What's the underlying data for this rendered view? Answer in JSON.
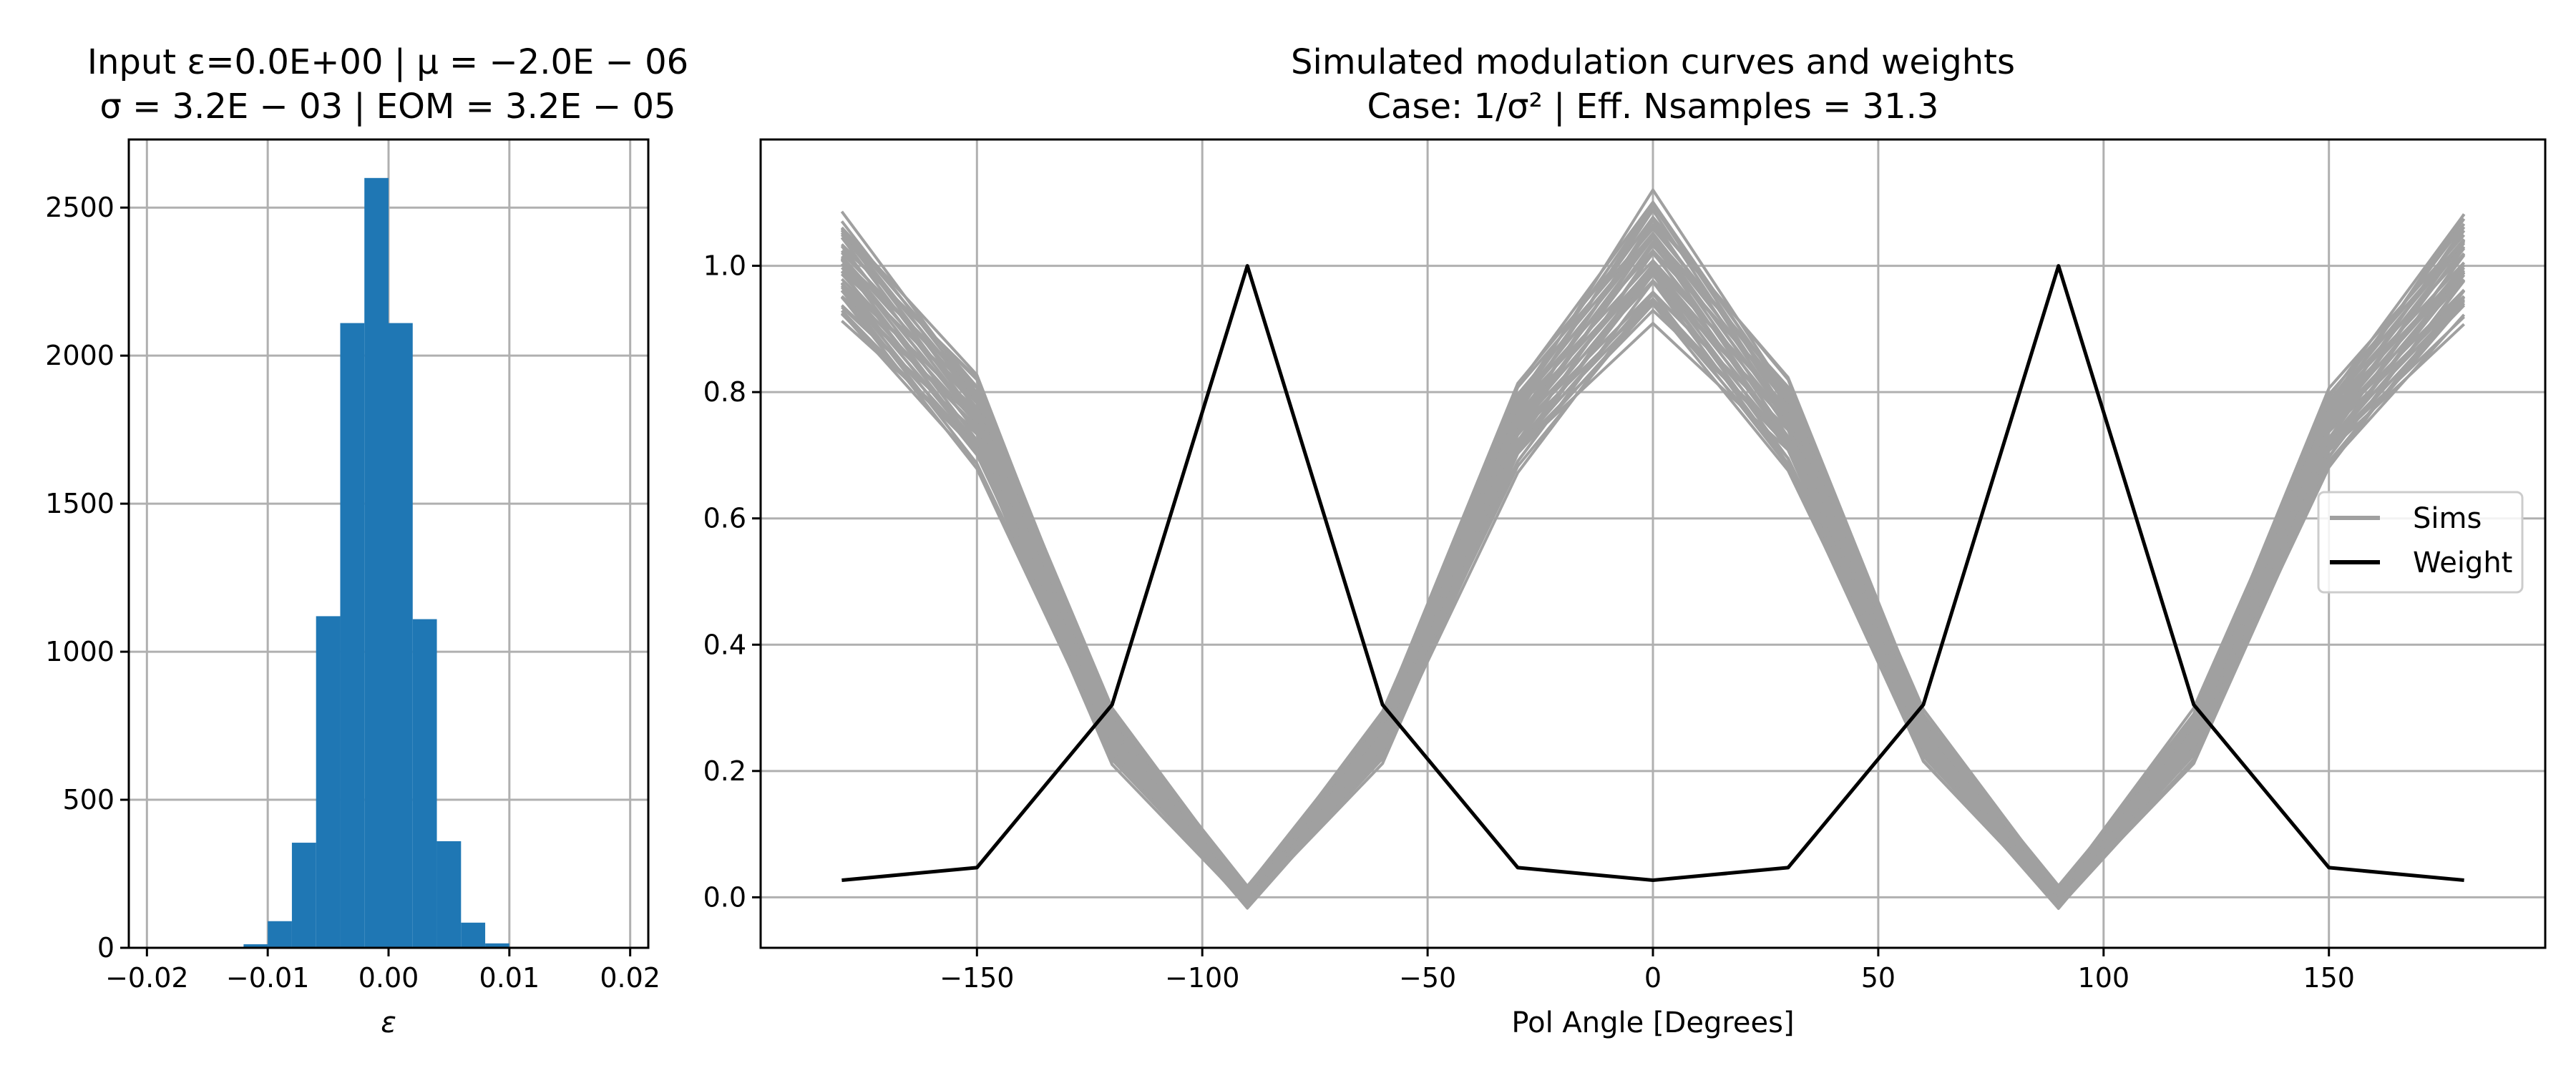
{
  "chart_data": [
    {
      "type": "bar",
      "title_lines": [
        "Input ε=0.0E+00 | μ = −2.0E − 06",
        "σ = 3.2E − 03 | EOM = 3.2E − 05"
      ],
      "xlabel": "ε",
      "ylabel": "",
      "xlim": [
        -0.0215,
        0.0215
      ],
      "ylim": [
        0,
        2730
      ],
      "grid": true,
      "bar_color": "#1f77b4",
      "bin_width": 0.002,
      "bins": [
        {
          "left": -0.012,
          "count": 12
        },
        {
          "left": -0.01,
          "count": 90
        },
        {
          "left": -0.008,
          "count": 355
        },
        {
          "left": -0.006,
          "count": 1120
        },
        {
          "left": -0.004,
          "count": 2110
        },
        {
          "left": -0.002,
          "count": 2600
        },
        {
          "left": 0.0,
          "count": 2110
        },
        {
          "left": 0.002,
          "count": 1110
        },
        {
          "left": 0.004,
          "count": 360
        },
        {
          "left": 0.006,
          "count": 85
        },
        {
          "left": 0.008,
          "count": 15
        },
        {
          "left": 0.01,
          "count": 3
        }
      ],
      "xticks": [
        {
          "v": -0.02,
          "label": "−0.02"
        },
        {
          "v": -0.01,
          "label": "−0.01"
        },
        {
          "v": 0.0,
          "label": "0.00"
        },
        {
          "v": 0.01,
          "label": "0.01"
        },
        {
          "v": 0.02,
          "label": "0.02"
        }
      ],
      "yticks": [
        {
          "v": 0,
          "label": "0"
        },
        {
          "v": 500,
          "label": "500"
        },
        {
          "v": 1000,
          "label": "1000"
        },
        {
          "v": 1500,
          "label": "1500"
        },
        {
          "v": 2000,
          "label": "2000"
        },
        {
          "v": 2500,
          "label": "2500"
        }
      ]
    },
    {
      "type": "line",
      "title_lines": [
        "Simulated modulation curves and weights",
        "Case: 1/σ² | Eff. Nsamples = 31.3"
      ],
      "xlabel": "Pol Angle [Degrees]",
      "ylabel": "",
      "xlim": [
        -198,
        198
      ],
      "ylim": [
        -0.08,
        1.2
      ],
      "grid": true,
      "legend_position": "center-right",
      "xticks": [
        {
          "v": -150,
          "label": "−150"
        },
        {
          "v": -100,
          "label": "−100"
        },
        {
          "v": -50,
          "label": "−50"
        },
        {
          "v": 0,
          "label": "0"
        },
        {
          "v": 50,
          "label": "50"
        },
        {
          "v": 100,
          "label": "100"
        },
        {
          "v": 150,
          "label": "150"
        }
      ],
      "yticks": [
        {
          "v": 0.0,
          "label": "0.0"
        },
        {
          "v": 0.2,
          "label": "0.2"
        },
        {
          "v": 0.4,
          "label": "0.4"
        },
        {
          "v": 0.6,
          "label": "0.6"
        },
        {
          "v": 0.8,
          "label": "0.8"
        },
        {
          "v": 1.0,
          "label": "1.0"
        }
      ],
      "x": [
        -180,
        -150,
        -120,
        -90,
        -60,
        -30,
        0,
        30,
        60,
        90,
        120,
        150,
        180
      ],
      "series": [
        {
          "name": "Sims",
          "color": "#a0a0a0",
          "band_low": [
            0.9,
            0.67,
            0.21,
            -0.02,
            0.21,
            0.67,
            0.9,
            0.67,
            0.21,
            -0.02,
            0.21,
            0.67,
            0.9
          ],
          "band_high": [
            1.09,
            0.84,
            0.3,
            0.02,
            0.3,
            0.82,
            1.13,
            0.83,
            0.3,
            0.02,
            0.3,
            0.81,
            1.1
          ]
        },
        {
          "name": "Weight",
          "color": "#000000",
          "values": [
            0.027,
            0.047,
            0.305,
            1.0,
            0.305,
            0.047,
            0.027,
            0.047,
            0.305,
            1.0,
            0.305,
            0.047,
            0.027
          ]
        }
      ]
    }
  ]
}
